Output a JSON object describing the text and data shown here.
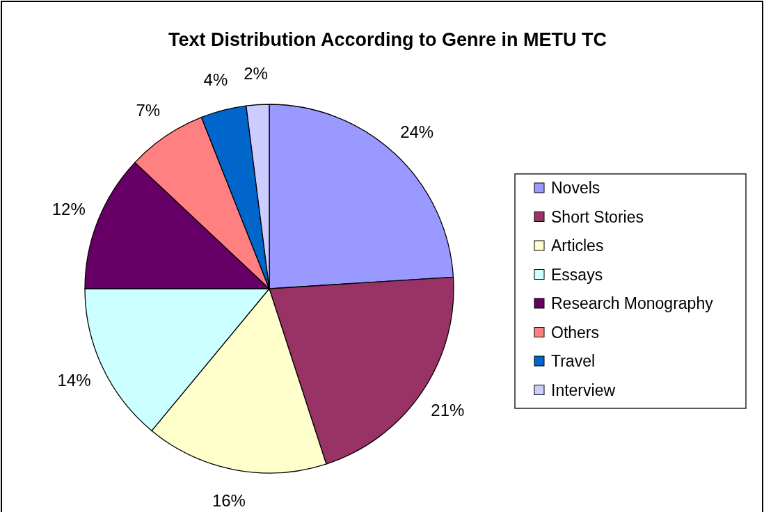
{
  "chart_data": {
    "type": "pie",
    "title": "Text Distribution According to Genre in METU TC",
    "categories": [
      "Novels",
      "Short Stories",
      "Articles",
      "Essays",
      "Research Monography",
      "Others",
      "Travel",
      "Interview"
    ],
    "values": [
      24,
      21,
      16,
      14,
      12,
      7,
      4,
      2
    ],
    "colors": [
      "#9999ff",
      "#993366",
      "#ffffcc",
      "#ccffff",
      "#660066",
      "#ff8080",
      "#0066cc",
      "#ccccff"
    ],
    "value_labels": [
      "24%",
      "21%",
      "16%",
      "14%",
      "12%",
      "7%",
      "4%",
      "2%"
    ],
    "legend": "right"
  }
}
